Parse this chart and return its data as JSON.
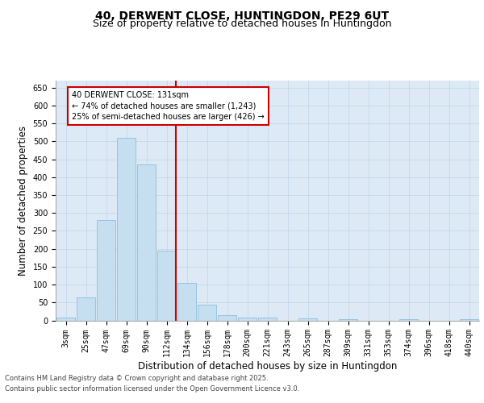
{
  "title1": "40, DERWENT CLOSE, HUNTINGDON, PE29 6UT",
  "title2": "Size of property relative to detached houses in Huntingdon",
  "xlabel": "Distribution of detached houses by size in Huntingdon",
  "ylabel": "Number of detached properties",
  "categories": [
    "3sqm",
    "25sqm",
    "47sqm",
    "69sqm",
    "90sqm",
    "112sqm",
    "134sqm",
    "156sqm",
    "178sqm",
    "200sqm",
    "221sqm",
    "243sqm",
    "265sqm",
    "287sqm",
    "309sqm",
    "331sqm",
    "353sqm",
    "374sqm",
    "396sqm",
    "418sqm",
    "440sqm"
  ],
  "values": [
    8,
    65,
    280,
    510,
    435,
    195,
    105,
    45,
    15,
    8,
    8,
    0,
    5,
    0,
    3,
    0,
    0,
    3,
    0,
    0,
    3
  ],
  "bar_color": "#c5dff0",
  "bar_edgecolor": "#7fb8d8",
  "vline_color": "#cc0000",
  "annotation_text": "40 DERWENT CLOSE: 131sqm\n← 74% of detached houses are smaller (1,243)\n25% of semi-detached houses are larger (426) →",
  "annotation_box_color": "white",
  "annotation_box_edgecolor": "#cc0000",
  "ylim": [
    0,
    670
  ],
  "yticks": [
    0,
    50,
    100,
    150,
    200,
    250,
    300,
    350,
    400,
    450,
    500,
    550,
    600,
    650
  ],
  "grid_color": "#c0d4e8",
  "background_color": "#ddeaf5",
  "footer1": "Contains HM Land Registry data © Crown copyright and database right 2025.",
  "footer2": "Contains public sector information licensed under the Open Government Licence v3.0.",
  "title_fontsize": 10,
  "subtitle_fontsize": 9,
  "tick_fontsize": 7,
  "label_fontsize": 8.5,
  "footer_fontsize": 6
}
